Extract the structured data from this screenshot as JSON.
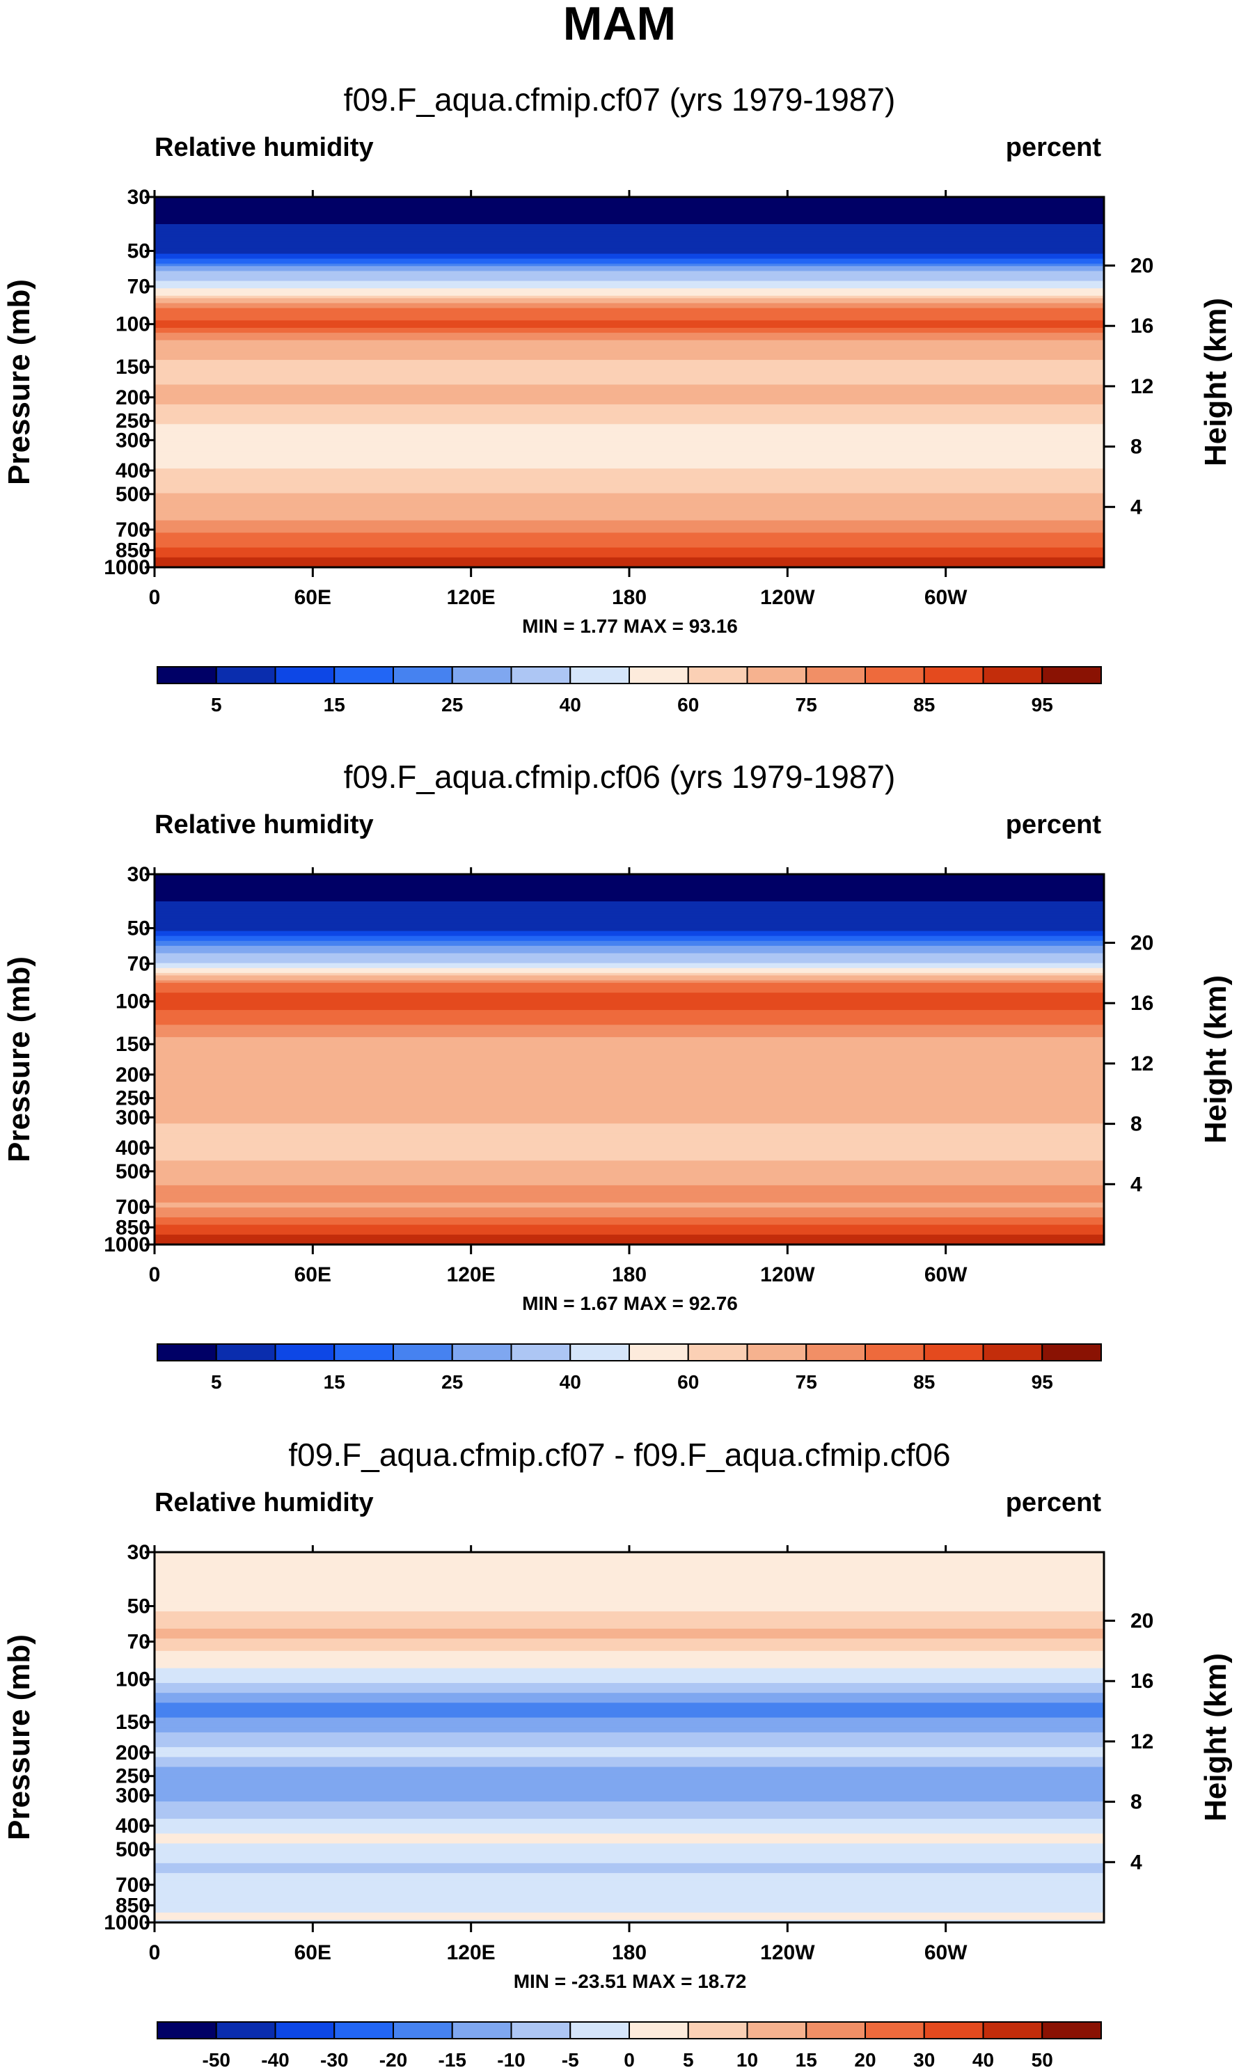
{
  "page": {
    "season": "MAM"
  },
  "colors": {
    "rh_levels": [
      "#000066",
      "#0a2dae",
      "#0d47e6",
      "#2266f5",
      "#4682f0",
      "#7fa7f0",
      "#adc6f4",
      "#d5e5fa",
      "#fdebdc",
      "#fbd0b5",
      "#f6b28f",
      "#f18f66",
      "#ee6a3c",
      "#e44a1e",
      "#c32d0b",
      "#8a1203"
    ],
    "diff_levels": [
      "#000066",
      "#0a2dae",
      "#0d47e6",
      "#2266f5",
      "#4682f0",
      "#7fa7f0",
      "#adc6f4",
      "#d5e5fa",
      "#fdebdc",
      "#fbd0b5",
      "#f6b28f",
      "#f18f66",
      "#ee6a3c",
      "#e44a1e",
      "#c32d0b",
      "#8a1203"
    ]
  },
  "chart_data": [
    {
      "type": "heatmap",
      "title": "f09.F_aqua.cfmip.cf07 (yrs 1979-1987)",
      "left_label": "Relative humidity",
      "right_label": "percent",
      "ylabel": "Pressure (mb)",
      "ylabel_right": "Height (km)",
      "x_ticks": [
        "0",
        "60E",
        "120E",
        "180",
        "120W",
        "60W"
      ],
      "y_ticks": [
        "30",
        "50",
        "70",
        "100",
        "150",
        "200",
        "250",
        "300",
        "400",
        "500",
        "700",
        "850",
        "1000"
      ],
      "y_ticks_right": [
        "20",
        "16",
        "12",
        "8",
        "4"
      ],
      "min_max_text": "MIN =   1.77  MAX =  93.16",
      "min": 1.77,
      "max": 93.16,
      "colorbar_labels": [
        "5",
        "15",
        "25",
        "40",
        "60",
        "75",
        "85",
        "95"
      ],
      "colorbar_levels": [
        5,
        10,
        15,
        20,
        25,
        30,
        40,
        50,
        60,
        65,
        75,
        80,
        85,
        90,
        95
      ],
      "profile": [
        {
          "p": 30,
          "v": 2
        },
        {
          "p": 50,
          "v": 8
        },
        {
          "p": 70,
          "v": 45
        },
        {
          "p": 85,
          "v": 80
        },
        {
          "p": 100,
          "v": 87
        },
        {
          "p": 120,
          "v": 72
        },
        {
          "p": 150,
          "v": 62
        },
        {
          "p": 200,
          "v": 67
        },
        {
          "p": 250,
          "v": 61
        },
        {
          "p": 300,
          "v": 52
        },
        {
          "p": 350,
          "v": 55
        },
        {
          "p": 400,
          "v": 61
        },
        {
          "p": 500,
          "v": 65
        },
        {
          "p": 600,
          "v": 72
        },
        {
          "p": 700,
          "v": 79
        },
        {
          "p": 800,
          "v": 83
        },
        {
          "p": 850,
          "v": 87
        },
        {
          "p": 920,
          "v": 91
        },
        {
          "p": 1000,
          "v": 93
        }
      ]
    },
    {
      "type": "heatmap",
      "title": "f09.F_aqua.cfmip.cf06 (yrs 1979-1987)",
      "left_label": "Relative humidity",
      "right_label": "percent",
      "ylabel": "Pressure (mb)",
      "ylabel_right": "Height (km)",
      "x_ticks": [
        "0",
        "60E",
        "120E",
        "180",
        "120W",
        "60W"
      ],
      "y_ticks": [
        "30",
        "50",
        "70",
        "100",
        "150",
        "200",
        "250",
        "300",
        "400",
        "500",
        "700",
        "850",
        "1000"
      ],
      "y_ticks_right": [
        "20",
        "16",
        "12",
        "8",
        "4"
      ],
      "min_max_text": "MIN =   1.67  MAX =  92.76",
      "min": 1.67,
      "max": 92.76,
      "colorbar_labels": [
        "5",
        "15",
        "25",
        "40",
        "60",
        "75",
        "85",
        "95"
      ],
      "colorbar_levels": [
        5,
        10,
        15,
        20,
        25,
        30,
        40,
        50,
        60,
        65,
        75,
        80,
        85,
        90,
        95
      ],
      "profile": [
        {
          "p": 30,
          "v": 2
        },
        {
          "p": 50,
          "v": 8
        },
        {
          "p": 70,
          "v": 40
        },
        {
          "p": 85,
          "v": 82
        },
        {
          "p": 100,
          "v": 88
        },
        {
          "p": 120,
          "v": 82
        },
        {
          "p": 150,
          "v": 72
        },
        {
          "p": 200,
          "v": 66
        },
        {
          "p": 250,
          "v": 72
        },
        {
          "p": 300,
          "v": 66
        },
        {
          "p": 400,
          "v": 61
        },
        {
          "p": 500,
          "v": 68
        },
        {
          "p": 600,
          "v": 77
        },
        {
          "p": 700,
          "v": 74
        },
        {
          "p": 800,
          "v": 83
        },
        {
          "p": 850,
          "v": 87
        },
        {
          "p": 920,
          "v": 91
        },
        {
          "p": 1000,
          "v": 93
        }
      ]
    },
    {
      "type": "heatmap",
      "title": "f09.F_aqua.cfmip.cf07 - f09.F_aqua.cfmip.cf06",
      "left_label": "Relative humidity",
      "right_label": "percent",
      "ylabel": "Pressure (mb)",
      "ylabel_right": "Height (km)",
      "x_ticks": [
        "0",
        "60E",
        "120E",
        "180",
        "120W",
        "60W"
      ],
      "y_ticks": [
        "30",
        "50",
        "70",
        "100",
        "150",
        "200",
        "250",
        "300",
        "400",
        "500",
        "700",
        "850",
        "1000"
      ],
      "y_ticks_right": [
        "20",
        "16",
        "12",
        "8",
        "4"
      ],
      "min_max_text": "MIN = -23.51  MAX =  18.72",
      "min": -23.51,
      "max": 18.72,
      "colorbar_labels": [
        "-50",
        "-40",
        "-30",
        "-20",
        "-15",
        "-10",
        "-5",
        "0",
        "5",
        "10",
        "15",
        "20",
        "30",
        "40",
        "50"
      ],
      "colorbar_levels": [
        -50,
        -40,
        -30,
        -20,
        -15,
        -10,
        -5,
        0,
        5,
        10,
        15,
        20,
        30,
        40,
        50
      ],
      "profile": [
        {
          "p": 30,
          "v": 0
        },
        {
          "p": 50,
          "v": 3
        },
        {
          "p": 65,
          "v": 12
        },
        {
          "p": 80,
          "v": 3
        },
        {
          "p": 100,
          "v": -3
        },
        {
          "p": 130,
          "v": -17
        },
        {
          "p": 150,
          "v": -14
        },
        {
          "p": 200,
          "v": -3
        },
        {
          "p": 250,
          "v": -14
        },
        {
          "p": 300,
          "v": -12
        },
        {
          "p": 400,
          "v": -3
        },
        {
          "p": 450,
          "v": 2
        },
        {
          "p": 500,
          "v": -3
        },
        {
          "p": 600,
          "v": -6
        },
        {
          "p": 700,
          "v": -3
        },
        {
          "p": 850,
          "v": -3
        },
        {
          "p": 950,
          "v": 2
        },
        {
          "p": 1000,
          "v": -3
        }
      ]
    }
  ]
}
